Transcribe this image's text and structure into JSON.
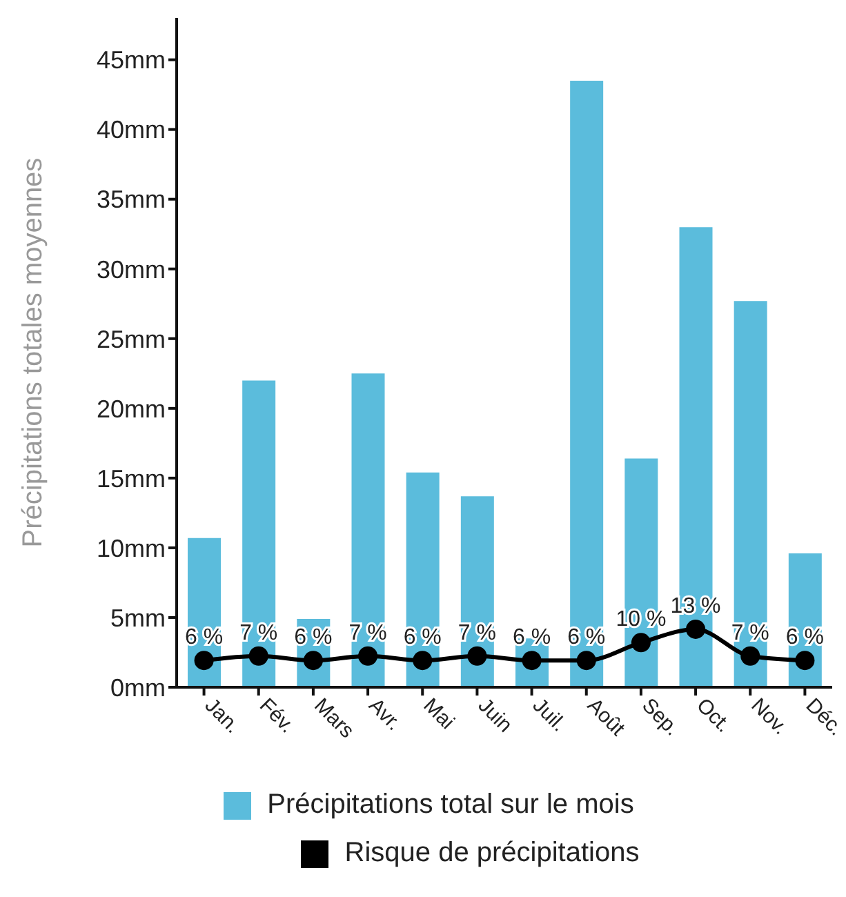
{
  "chart_data": {
    "type": "bar",
    "ylabel": "Précipitations totales moyennes",
    "categories": [
      "Jan.",
      "Fév.",
      "Mars",
      "Avr.",
      "Mai",
      "Juin",
      "Juil.",
      "Août",
      "Sep.",
      "Oct.",
      "Nov.",
      "Déc."
    ],
    "series": [
      {
        "name": "Précipitations total sur le mois",
        "color": "#5bbcdc",
        "values": [
          10.7,
          22.0,
          4.9,
          22.5,
          15.4,
          13.7,
          3.5,
          43.5,
          16.4,
          33.0,
          27.7,
          9.6
        ]
      },
      {
        "name": "Risque de précipitations",
        "type": "line",
        "axis": "y2",
        "color": "#000000",
        "marker": "circle",
        "values": [
          6,
          7,
          6,
          7,
          6,
          7,
          6,
          6,
          10,
          13,
          7,
          6
        ],
        "value_labels": [
          "6 %",
          "7 %",
          "6 %",
          "7 %",
          "6 %",
          "7 %",
          "6 %",
          "6 %",
          "10 %",
          "13 %",
          "7 %",
          "6 %"
        ]
      }
    ],
    "ylim": [
      0,
      48
    ],
    "yticks": [
      {
        "value": 0,
        "label": "0mm"
      },
      {
        "value": 5,
        "label": "5mm"
      },
      {
        "value": 10,
        "label": "10mm"
      },
      {
        "value": 15,
        "label": "15mm"
      },
      {
        "value": 20,
        "label": "20mm"
      },
      {
        "value": 25,
        "label": "25mm"
      },
      {
        "value": 30,
        "label": "30mm"
      },
      {
        "value": 35,
        "label": "35mm"
      },
      {
        "value": 40,
        "label": "40mm"
      },
      {
        "value": 45,
        "label": "45mm"
      }
    ],
    "y2lim": [
      0,
      150
    ],
    "grid": false,
    "legend": "bottom"
  }
}
